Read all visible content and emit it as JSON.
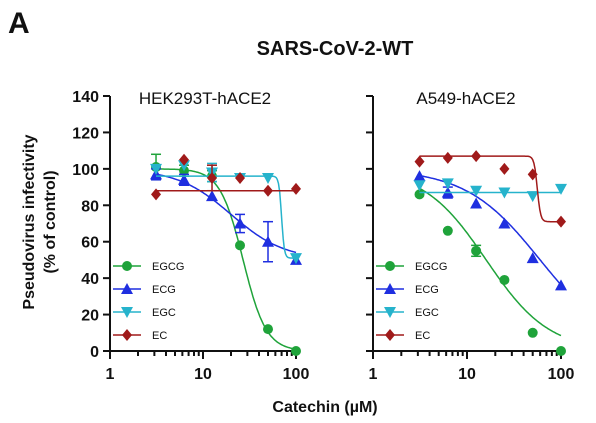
{
  "panel_letter": "A",
  "title": "SARS-CoV-2-WT",
  "ylabel_line1": "Pseudovirus infectivity",
  "ylabel_line2": "(% of control)",
  "xlabel": "Catechin (µM)",
  "colors": {
    "EGCG": "#1fa33a",
    "ECG": "#1f2fe0",
    "EGC": "#26b3cc",
    "EC": "#a01a1a"
  },
  "chart_data": [
    {
      "type": "scatter",
      "subtitle": "HEK293T-hACE2",
      "x_scale": "log",
      "xlim": [
        1,
        100
      ],
      "ylim": [
        0,
        140
      ],
      "x_ticks": [
        1,
        10,
        100
      ],
      "x_tick_labels": [
        "1",
        "10",
        "100"
      ],
      "y_ticks": [
        0,
        20,
        40,
        60,
        80,
        100,
        120,
        140
      ],
      "y_tick_labels": [
        "0",
        "20",
        "40",
        "60",
        "80",
        "100",
        "120",
        "140"
      ],
      "grid": false,
      "legend": "bottom-left",
      "series": [
        {
          "name": "EGCG",
          "marker": "circle",
          "x": [
            3.125,
            6.25,
            12.5,
            25,
            50,
            100
          ],
          "y": [
            101,
            99,
            96,
            58,
            12,
            0
          ],
          "err": [
            7,
            3,
            3,
            0,
            0,
            0
          ],
          "fit": {
            "top": 100,
            "bottom": 0,
            "ic50": 27,
            "hill": 3.5
          }
        },
        {
          "name": "ECG",
          "marker": "triangle-up",
          "x": [
            3.125,
            6.25,
            12.5,
            25,
            50,
            100
          ],
          "y": [
            97,
            94,
            85,
            70,
            60,
            50
          ],
          "err": [
            3,
            3,
            0,
            5,
            11,
            0
          ],
          "fit": {
            "top": 100,
            "bottom": 50,
            "ic50": 20,
            "hill": 1.5
          }
        },
        {
          "name": "EGC",
          "marker": "triangle-down",
          "x": [
            3.125,
            6.25,
            12.5,
            25,
            50,
            100
          ],
          "y": [
            100,
            102,
            98,
            95,
            95,
            51
          ],
          "err": [
            0,
            0,
            5,
            0,
            0,
            0
          ],
          "fit": {
            "top": 96,
            "bottom": 51,
            "ic50": 70,
            "hill": 30
          }
        },
        {
          "name": "EC",
          "marker": "diamond",
          "x": [
            3.125,
            6.25,
            12.5,
            25,
            50,
            100
          ],
          "y": [
            86,
            105,
            95,
            95,
            88,
            89
          ],
          "err": [
            0,
            0,
            7,
            0,
            0,
            0
          ],
          "fit": {
            "top": 88,
            "bottom": 88,
            "ic50": 30,
            "hill": 1
          }
        }
      ]
    },
    {
      "type": "scatter",
      "subtitle": "A549-hACE2",
      "x_scale": "log",
      "xlim": [
        1,
        100
      ],
      "ylim": [
        0,
        140
      ],
      "x_ticks": [
        1,
        10,
        100
      ],
      "x_tick_labels": [
        "1",
        "10",
        "100"
      ],
      "y_ticks": [
        0,
        20,
        40,
        60,
        80,
        100,
        120,
        140
      ],
      "grid": false,
      "legend": "bottom-left",
      "series": [
        {
          "name": "EGCG",
          "marker": "circle",
          "x": [
            3.125,
            6.25,
            12.5,
            25,
            50,
            100
          ],
          "y": [
            86,
            66,
            55,
            39,
            10,
            0
          ],
          "err": [
            0,
            0,
            3,
            0,
            0,
            0
          ],
          "fit": {
            "top": 100,
            "bottom": 0,
            "ic50": 16,
            "hill": 1.3
          }
        },
        {
          "name": "ECG",
          "marker": "triangle-up",
          "x": [
            3.125,
            6.25,
            12.5,
            25,
            50,
            100
          ],
          "y": [
            96,
            87,
            81,
            70,
            51,
            36
          ],
          "err": [
            0,
            3,
            0,
            0,
            0,
            0
          ],
          "fit": {
            "top": 100,
            "bottom": 0,
            "ic50": 60,
            "hill": 1.1
          }
        },
        {
          "name": "EGC",
          "marker": "triangle-down",
          "x": [
            3.125,
            6.25,
            12.5,
            25,
            50,
            100
          ],
          "y": [
            91,
            92,
            88,
            87,
            85,
            89
          ],
          "err": [
            0,
            0,
            0,
            0,
            0,
            0
          ],
          "fit": {
            "top": 87,
            "bottom": 87,
            "ic50": 30,
            "hill": 1
          }
        },
        {
          "name": "EC",
          "marker": "diamond",
          "x": [
            3.125,
            6.25,
            12.5,
            25,
            50,
            100
          ],
          "y": [
            104,
            106,
            107,
            100,
            97,
            71
          ],
          "err": [
            0,
            0,
            0,
            0,
            0,
            0
          ],
          "fit": {
            "top": 107,
            "bottom": 71,
            "ic50": 56,
            "hill": 25
          }
        }
      ]
    }
  ]
}
